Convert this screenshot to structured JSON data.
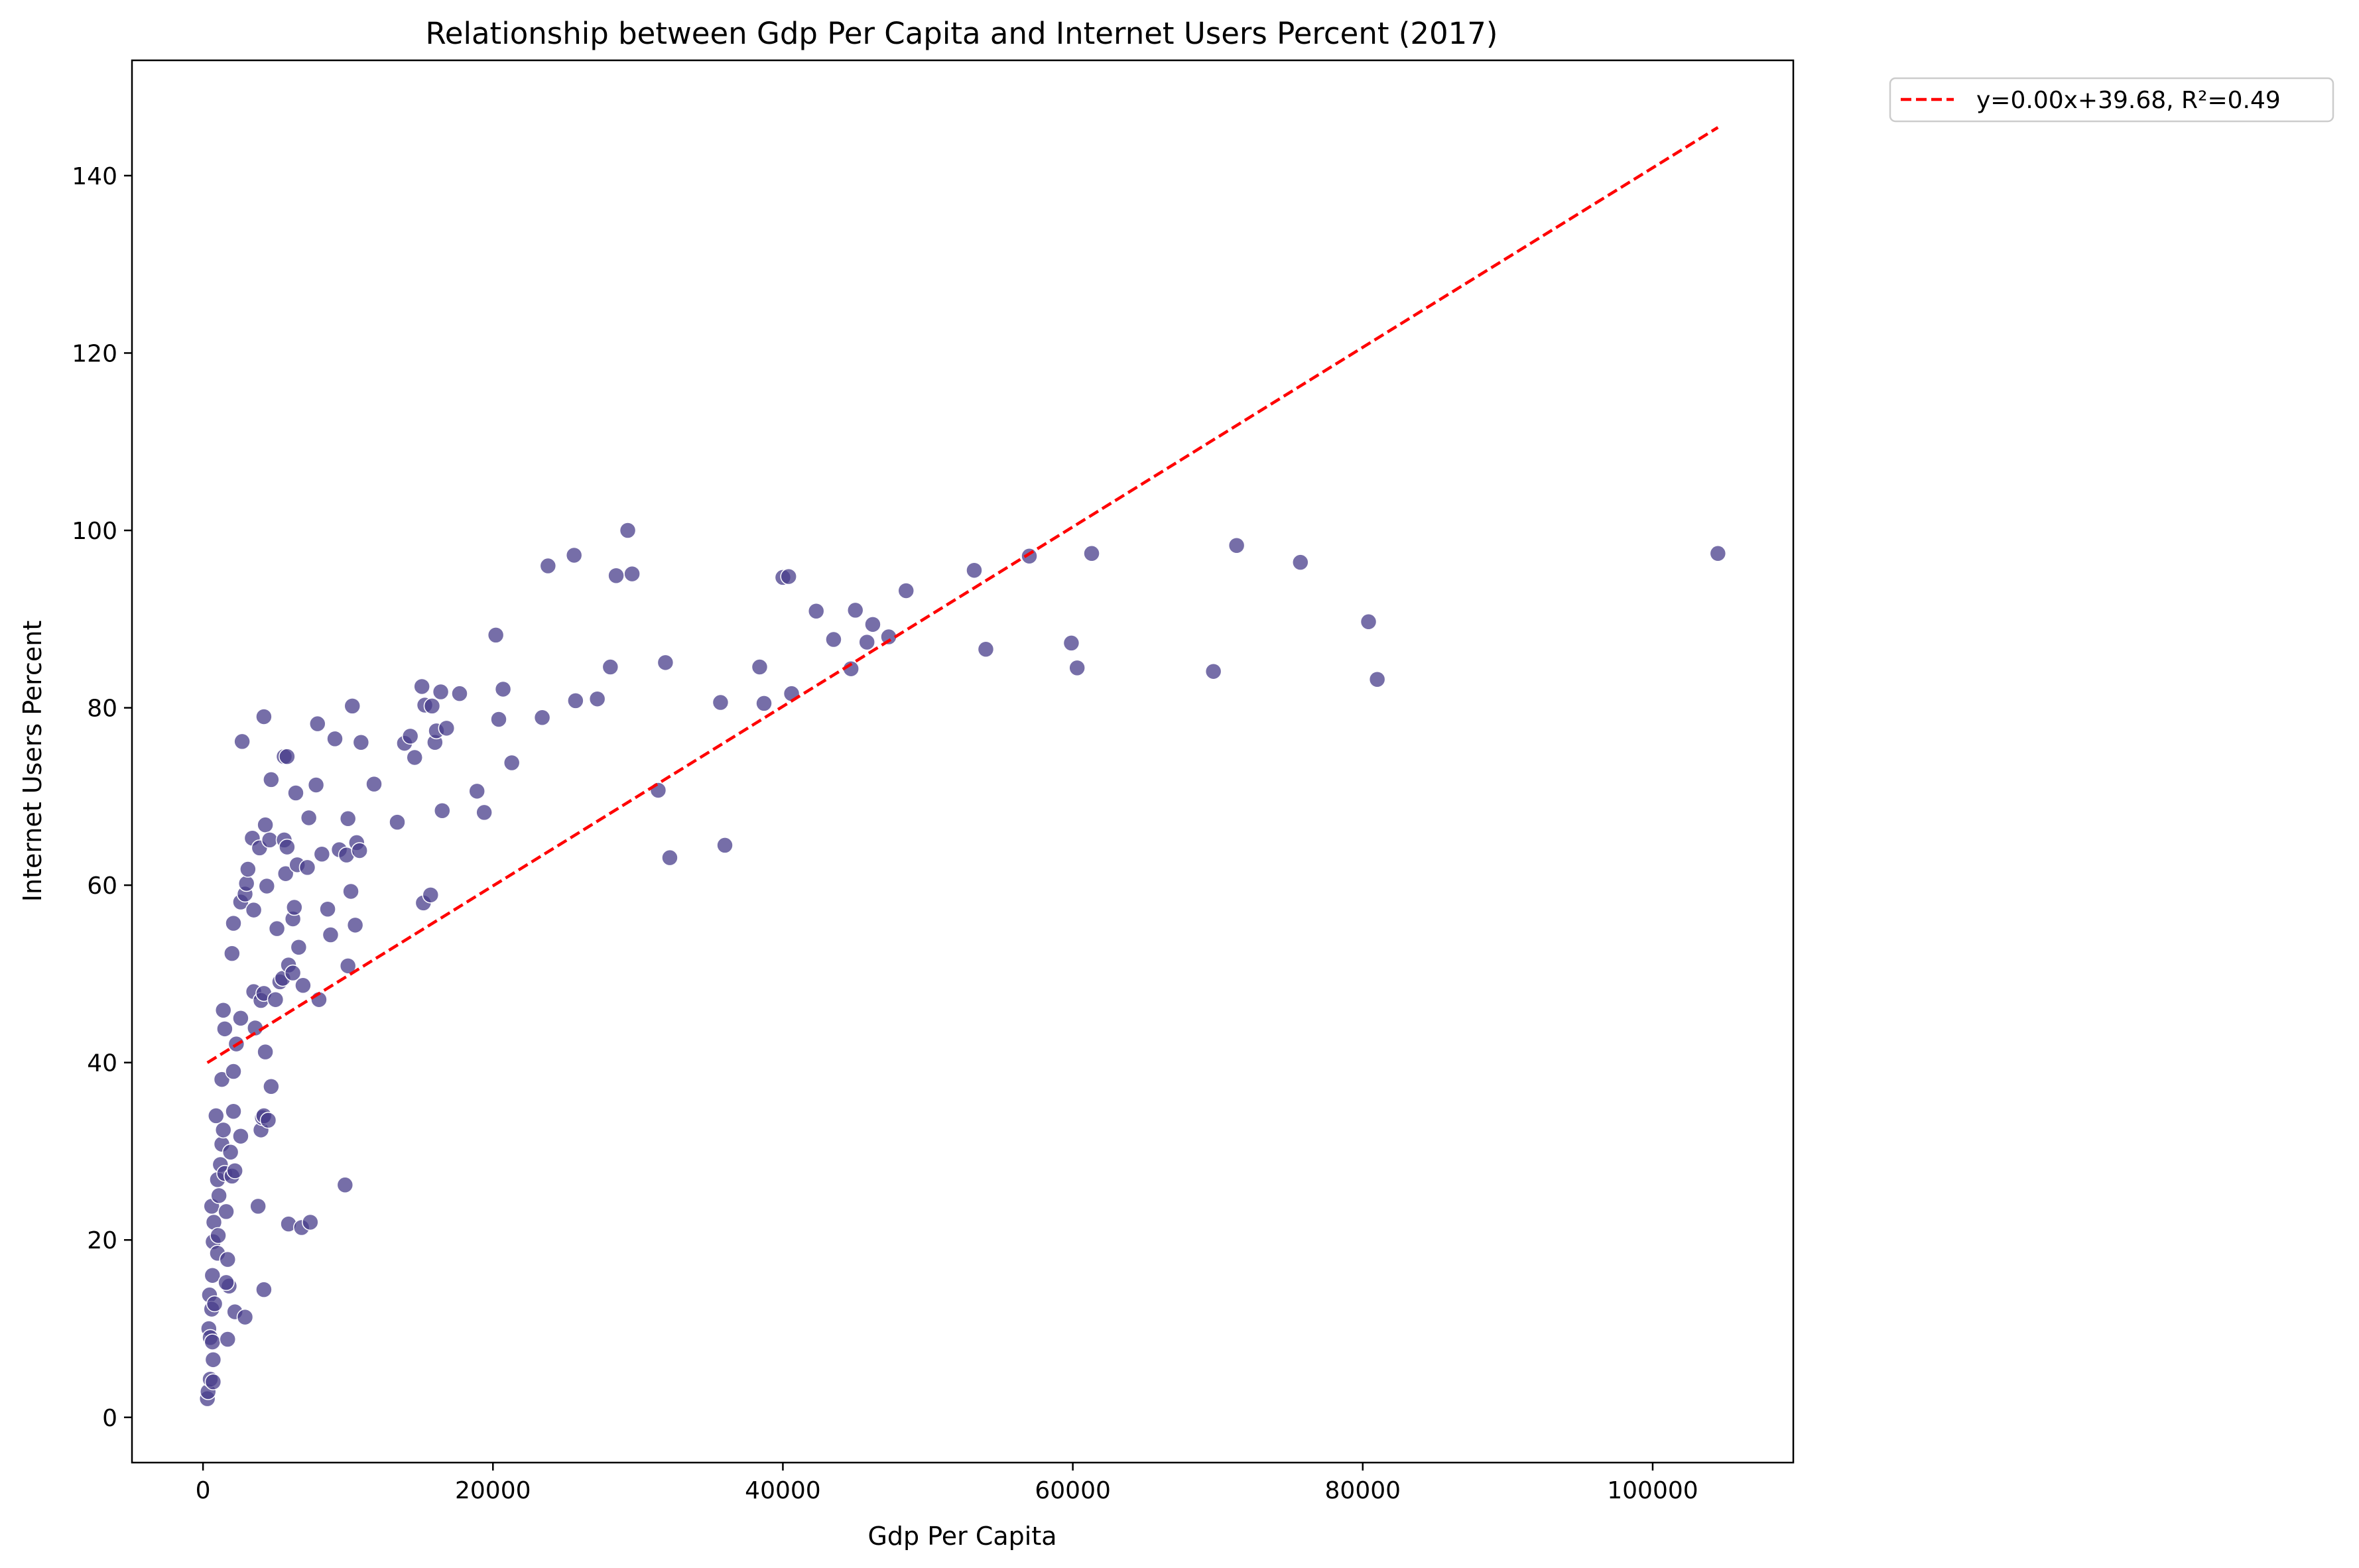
{
  "chart_data": {
    "type": "scatter",
    "title": "Relationship between Gdp Per Capita and Internet Users Percent (2017)",
    "xlabel": "Gdp Per Capita",
    "ylabel": "Internet Users Percent",
    "xlim": [
      -4900,
      109700
    ],
    "ylim": [
      -5.1,
      153
    ],
    "xticks": [
      0,
      20000,
      40000,
      60000,
      80000,
      100000
    ],
    "yticks": [
      0,
      20,
      40,
      60,
      80,
      100,
      120,
      140
    ],
    "grid": false,
    "legend_position": "outside-top-right",
    "colors": {
      "points": "#483D8B",
      "trend": "#ff0000"
    },
    "series": [
      {
        "kind": "points",
        "points": [
          [
            300,
            2.1
          ],
          [
            350,
            2.9
          ],
          [
            400,
            10
          ],
          [
            500,
            4.3
          ],
          [
            450,
            13.8
          ],
          [
            500,
            9
          ],
          [
            650,
            8.5
          ],
          [
            700,
            4
          ],
          [
            600,
            12.2
          ],
          [
            700,
            6.5
          ],
          [
            800,
            12.8
          ],
          [
            650,
            16
          ],
          [
            700,
            19.8
          ],
          [
            750,
            22
          ],
          [
            600,
            23.8
          ],
          [
            1000,
            18.5
          ],
          [
            1050,
            20.5
          ],
          [
            1100,
            25
          ],
          [
            1000,
            26.8
          ],
          [
            1200,
            28.5
          ],
          [
            1300,
            30.8
          ],
          [
            1400,
            32.4
          ],
          [
            1500,
            27.5
          ],
          [
            1600,
            23.2
          ],
          [
            1700,
            17.8
          ],
          [
            1800,
            14.8
          ],
          [
            1600,
            15.2
          ],
          [
            1700,
            8.8
          ],
          [
            900,
            34
          ],
          [
            1300,
            38.1
          ],
          [
            1400,
            45.9
          ],
          [
            1500,
            43.8
          ],
          [
            1900,
            29.9
          ],
          [
            2000,
            27.2
          ],
          [
            2100,
            34.5
          ],
          [
            2200,
            27.8
          ],
          [
            2200,
            11.9
          ],
          [
            2600,
            31.7
          ],
          [
            2600,
            45
          ],
          [
            2900,
            11.3
          ],
          [
            2100,
            39
          ],
          [
            2300,
            42.1
          ],
          [
            2000,
            52.3
          ],
          [
            2100,
            55.7
          ],
          [
            2600,
            58.1
          ],
          [
            2900,
            59
          ],
          [
            3000,
            60.2
          ],
          [
            3100,
            61.8
          ],
          [
            3400,
            65.3
          ],
          [
            3500,
            57.2
          ],
          [
            3500,
            48
          ],
          [
            3600,
            43.9
          ],
          [
            3900,
            64.2
          ],
          [
            4000,
            47
          ],
          [
            3800,
            23.8
          ],
          [
            4000,
            32.4
          ],
          [
            4100,
            33.8
          ],
          [
            4200,
            34
          ],
          [
            4300,
            41.2
          ],
          [
            4200,
            14.4
          ],
          [
            4200,
            47.8
          ],
          [
            4400,
            59.9
          ],
          [
            4300,
            66.8
          ],
          [
            4200,
            79
          ],
          [
            4600,
            65.1
          ],
          [
            4700,
            71.9
          ],
          [
            4700,
            37.3
          ],
          [
            4500,
            33.5
          ],
          [
            5000,
            47.1
          ],
          [
            5100,
            55.1
          ],
          [
            5300,
            49.1
          ],
          [
            5500,
            49.5
          ],
          [
            5600,
            65.1
          ],
          [
            5600,
            74.5
          ],
          [
            5800,
            74.5
          ],
          [
            5800,
            64.3
          ],
          [
            5700,
            61.3
          ],
          [
            5900,
            51
          ],
          [
            5900,
            21.8
          ],
          [
            6200,
            50.1
          ],
          [
            6200,
            56.2
          ],
          [
            6300,
            57.5
          ],
          [
            6400,
            70.4
          ],
          [
            6500,
            62.3
          ],
          [
            6600,
            53
          ],
          [
            6800,
            21.4
          ],
          [
            6900,
            48.7
          ],
          [
            7200,
            62
          ],
          [
            7300,
            67.6
          ],
          [
            7400,
            22
          ],
          [
            7800,
            71.3
          ],
          [
            7900,
            78.2
          ],
          [
            8000,
            47.1
          ],
          [
            8200,
            63.5
          ],
          [
            8600,
            57.3
          ],
          [
            8800,
            54.4
          ],
          [
            9100,
            76.5
          ],
          [
            9400,
            64
          ],
          [
            9800,
            26.2
          ],
          [
            9900,
            63.4
          ],
          [
            10000,
            67.5
          ],
          [
            10000,
            50.9
          ],
          [
            10200,
            59.3
          ],
          [
            10300,
            80.2
          ],
          [
            10500,
            55.5
          ],
          [
            10600,
            64.8
          ],
          [
            10800,
            63.9
          ],
          [
            10900,
            76.1
          ],
          [
            11800,
            71.4
          ],
          [
            2700,
            76.2
          ],
          [
            13400,
            67.1
          ],
          [
            13900,
            76
          ],
          [
            14300,
            76.8
          ],
          [
            14600,
            74.4
          ],
          [
            15100,
            82.4
          ],
          [
            15200,
            58
          ],
          [
            15300,
            80.3
          ],
          [
            15700,
            58.9
          ],
          [
            15800,
            80.2
          ],
          [
            16000,
            76.1
          ],
          [
            16100,
            77.4
          ],
          [
            16400,
            81.8
          ],
          [
            16500,
            68.4
          ],
          [
            16800,
            77.7
          ],
          [
            17700,
            81.6
          ],
          [
            18900,
            70.6
          ],
          [
            19400,
            68.2
          ],
          [
            20200,
            88.2
          ],
          [
            20400,
            78.7
          ],
          [
            20700,
            82.1
          ],
          [
            21300,
            73.8
          ],
          [
            23400,
            78.9
          ],
          [
            23800,
            96
          ],
          [
            25600,
            97.2
          ],
          [
            25700,
            80.8
          ],
          [
            27200,
            81
          ],
          [
            28100,
            84.6
          ],
          [
            28500,
            94.9
          ],
          [
            29300,
            100
          ],
          [
            29600,
            95.1
          ],
          [
            31400,
            70.7
          ],
          [
            31900,
            85.1
          ],
          [
            32200,
            63.1
          ],
          [
            35700,
            80.6
          ],
          [
            36000,
            64.5
          ],
          [
            38400,
            84.6
          ],
          [
            38700,
            80.5
          ],
          [
            40000,
            94.7
          ],
          [
            40400,
            94.8
          ],
          [
            40600,
            81.6
          ],
          [
            42300,
            90.9
          ],
          [
            43500,
            87.7
          ],
          [
            44700,
            84.4
          ],
          [
            45000,
            91
          ],
          [
            45800,
            87.4
          ],
          [
            46200,
            89.4
          ],
          [
            47300,
            88
          ],
          [
            48500,
            93.2
          ],
          [
            53200,
            95.5
          ],
          [
            54000,
            86.6
          ],
          [
            57000,
            97.1
          ],
          [
            59900,
            87.3
          ],
          [
            60300,
            84.5
          ],
          [
            61300,
            97.4
          ],
          [
            69700,
            84.1
          ],
          [
            71300,
            98.3
          ],
          [
            75700,
            96.4
          ],
          [
            80400,
            89.7
          ],
          [
            81000,
            83.2
          ],
          [
            104500,
            97.4
          ]
        ]
      },
      {
        "kind": "trend",
        "name": "y=0.00x+39.68, R²=0.49",
        "slope": 0.001012,
        "intercept": 39.68,
        "x_range": [
          300,
          104500
        ]
      }
    ]
  }
}
